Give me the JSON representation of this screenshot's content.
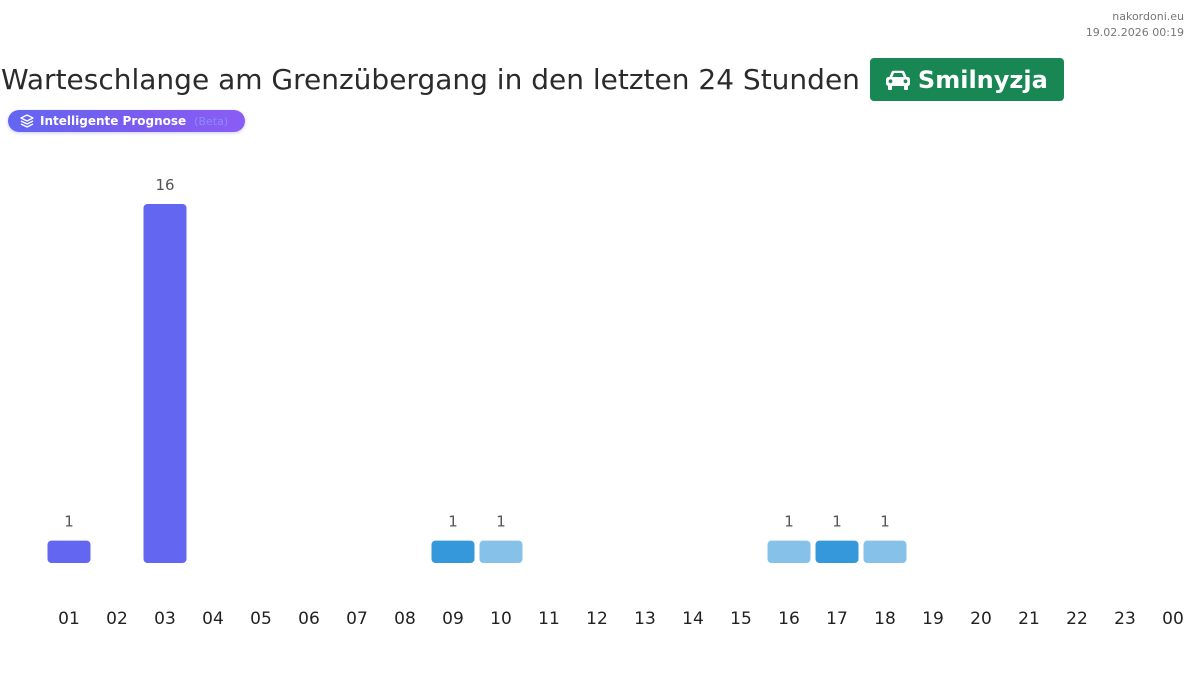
{
  "meta": {
    "site": "nakordoni.eu",
    "timestamp": "19.02.2026 00:19"
  },
  "header": {
    "title": "Warteschlange am Grenzübergang in den letzten 24 Stunden",
    "crossing": "Smilnyzja",
    "crossing_icon": "car-icon",
    "crossing_color": "#198754"
  },
  "forecast_pill": {
    "label": "Intelligente Prognose",
    "tag": "(Beta)",
    "icon": "layers-icon"
  },
  "colors": {
    "primary": "#6366f1",
    "dark_blue": "#3498db",
    "light_blue": "#85c1e9"
  },
  "chart_data": {
    "type": "bar",
    "title": "",
    "xlabel": "",
    "ylabel": "",
    "grid": false,
    "ylim": [
      0,
      17
    ],
    "categories": [
      "01",
      "02",
      "03",
      "04",
      "05",
      "06",
      "07",
      "08",
      "09",
      "10",
      "11",
      "12",
      "13",
      "14",
      "15",
      "16",
      "17",
      "18",
      "19",
      "20",
      "21",
      "22",
      "23",
      "00"
    ],
    "values": [
      1,
      null,
      16,
      null,
      null,
      null,
      null,
      null,
      1,
      1,
      null,
      null,
      null,
      null,
      null,
      1,
      1,
      1,
      null,
      null,
      null,
      null,
      null,
      null
    ],
    "bar_colors": [
      "#6366f1",
      null,
      "#6366f1",
      null,
      null,
      null,
      null,
      null,
      "#3498db",
      "#85c1e9",
      null,
      null,
      null,
      null,
      null,
      "#85c1e9",
      "#3498db",
      "#85c1e9",
      null,
      null,
      null,
      null,
      null,
      null
    ]
  }
}
